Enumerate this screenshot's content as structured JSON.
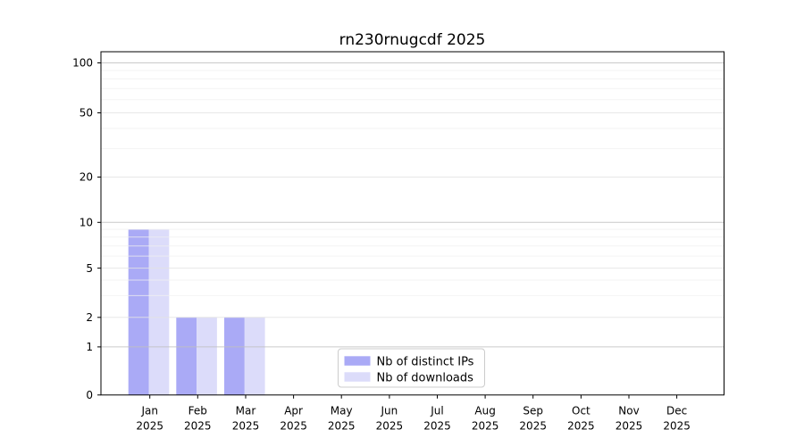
{
  "chart_data": {
    "type": "bar",
    "title": "rn230rnugcdf 2025",
    "xlabel": "",
    "ylabel": "",
    "scale_y": "symlog-like",
    "grid": true,
    "legend_position": "inside-bottom-center",
    "categories": [
      {
        "month": "Jan",
        "year": "2025"
      },
      {
        "month": "Feb",
        "year": "2025"
      },
      {
        "month": "Mar",
        "year": "2025"
      },
      {
        "month": "Apr",
        "year": "2025"
      },
      {
        "month": "May",
        "year": "2025"
      },
      {
        "month": "Jun",
        "year": "2025"
      },
      {
        "month": "Jul",
        "year": "2025"
      },
      {
        "month": "Aug",
        "year": "2025"
      },
      {
        "month": "Sep",
        "year": "2025"
      },
      {
        "month": "Oct",
        "year": "2025"
      },
      {
        "month": "Nov",
        "year": "2025"
      },
      {
        "month": "Dec",
        "year": "2025"
      }
    ],
    "series": [
      {
        "name": "Nb of distinct IPs",
        "color": "#aaaaf6",
        "values": [
          9,
          2,
          2,
          0,
          0,
          0,
          0,
          0,
          0,
          0,
          0,
          0
        ]
      },
      {
        "name": "Nb of downloads",
        "color": "#dcdcfa",
        "values": [
          9,
          2,
          2,
          0,
          0,
          0,
          0,
          0,
          0,
          0,
          0,
          0
        ]
      }
    ],
    "yticks": [
      0,
      1,
      2,
      5,
      10,
      20,
      50,
      100
    ],
    "y_minor_gridlines": [
      3,
      4,
      6,
      7,
      8,
      9,
      30,
      40,
      60,
      70,
      80,
      90
    ],
    "ylim": [
      0,
      110
    ],
    "colors": {
      "major_gridline": "#c0c0c0",
      "labeled_gridline": "#e3e3e3",
      "minor_gridline": "#f0f0f0",
      "axis": "#000000",
      "text": "#000000",
      "legend_border": "#cccccc"
    }
  }
}
